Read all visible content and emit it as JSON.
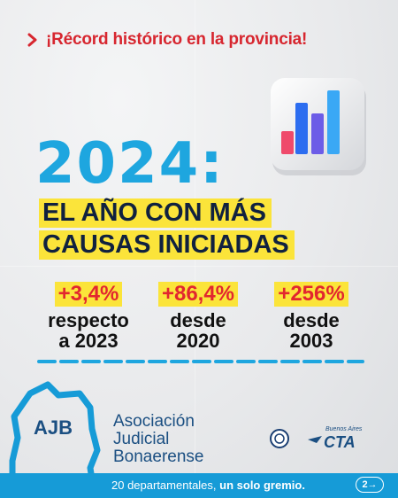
{
  "headline": "¡Récord histórico en la provincia!",
  "year": "2024:",
  "title": {
    "line1": "EL AÑO CON MÁS",
    "line2": "CAUSAS INICIADAS"
  },
  "stats": [
    {
      "value": "+3,4%",
      "desc1": "respecto",
      "desc2": "a 2023"
    },
    {
      "value": "+86,4%",
      "desc1": "desde",
      "desc2": "2020"
    },
    {
      "value": "+256%",
      "desc1": "desde",
      "desc2": "2003"
    }
  ],
  "logo_text": "AJB",
  "org": {
    "line1": "Asociación",
    "line2": "Judicial",
    "line3": "Bonaerense"
  },
  "cta_text": "CTA",
  "cta_small": "Buenos Aires",
  "footer": {
    "slogan_plain": "20 departamentales,",
    "slogan_bold": "un solo gremio.",
    "page": "2→"
  },
  "colors": {
    "accent_blue": "#1ea6df",
    "highlight_yellow": "#fbe43a",
    "red": "#d7262f",
    "navy": "#10213f"
  },
  "icons": [
    "chevron-right-icon",
    "bar-chart-icon",
    "ajb-logo",
    "seal-icon",
    "cta-logo"
  ]
}
